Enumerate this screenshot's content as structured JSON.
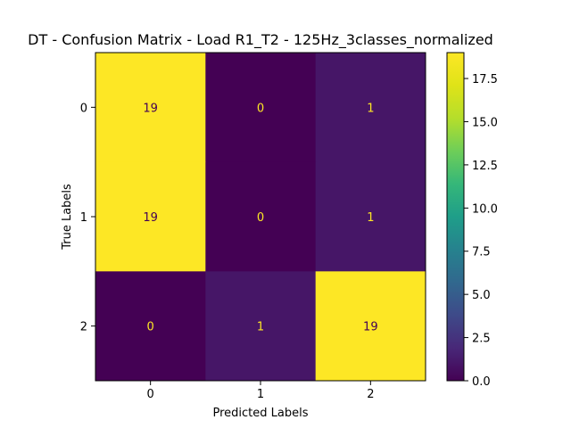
{
  "chart_data": {
    "type": "heatmap",
    "title": "DT - Confusion Matrix - Load R1_T2 - 125Hz_3classes_normalized",
    "xlabel": "Predicted Labels",
    "ylabel": "True Labels",
    "x_categories": [
      "0",
      "1",
      "2"
    ],
    "y_categories": [
      "0",
      "1",
      "2"
    ],
    "matrix": [
      [
        19,
        0,
        1
      ],
      [
        19,
        0,
        1
      ],
      [
        0,
        1,
        19
      ]
    ],
    "colormap": "viridis",
    "colorbar": {
      "range": [
        0.0,
        19.0
      ],
      "ticks": [
        0.0,
        2.5,
        5.0,
        7.5,
        10.0,
        12.5,
        15.0,
        17.5
      ],
      "tick_labels": [
        "0.0",
        "2.5",
        "5.0",
        "7.5",
        "10.0",
        "12.5",
        "15.0",
        "17.5"
      ]
    },
    "label_colors": {
      "on_dark": "#fde725",
      "on_light": "#440154"
    },
    "grid": false
  }
}
